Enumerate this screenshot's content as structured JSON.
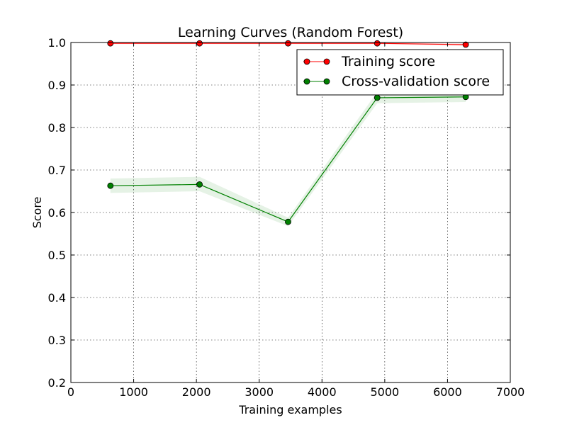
{
  "chart_data": {
    "type": "line",
    "title": "Learning Curves (Random Forest)",
    "xlabel": "Training examples",
    "ylabel": "Score",
    "xlim": [
      0,
      7000
    ],
    "ylim": [
      0.2,
      1.0
    ],
    "xticks": [
      0,
      1000,
      2000,
      3000,
      4000,
      5000,
      6000,
      7000
    ],
    "yticks": [
      0.2,
      0.3,
      0.4,
      0.5,
      0.6,
      0.7,
      0.8,
      0.9,
      1.0
    ],
    "xtick_labels": [
      "0",
      "1000",
      "2000",
      "3000",
      "4000",
      "5000",
      "6000",
      "7000"
    ],
    "ytick_labels": [
      "0.2",
      "0.3",
      "0.4",
      "0.5",
      "0.6",
      "0.7",
      "0.8",
      "0.9",
      "1.0"
    ],
    "grid": true,
    "legend_position": "top-right",
    "x": [
      630,
      2050,
      3460,
      4880,
      6290
    ],
    "series": [
      {
        "name": "Training score",
        "color": "#ff0000",
        "band_color": "#ff0000",
        "values": [
          0.998,
          0.998,
          0.998,
          0.998,
          0.995
        ],
        "band_low": [
          0.996,
          0.996,
          0.996,
          0.996,
          0.992
        ],
        "band_high": [
          1.0,
          1.0,
          1.0,
          1.0,
          0.998
        ]
      },
      {
        "name": "Cross-validation score",
        "color": "#008000",
        "band_color": "#008000",
        "values": [
          0.663,
          0.666,
          0.578,
          0.87,
          0.872
        ],
        "band_low": [
          0.646,
          0.65,
          0.568,
          0.857,
          0.86
        ],
        "band_high": [
          0.68,
          0.684,
          0.588,
          0.884,
          0.886
        ]
      }
    ]
  }
}
